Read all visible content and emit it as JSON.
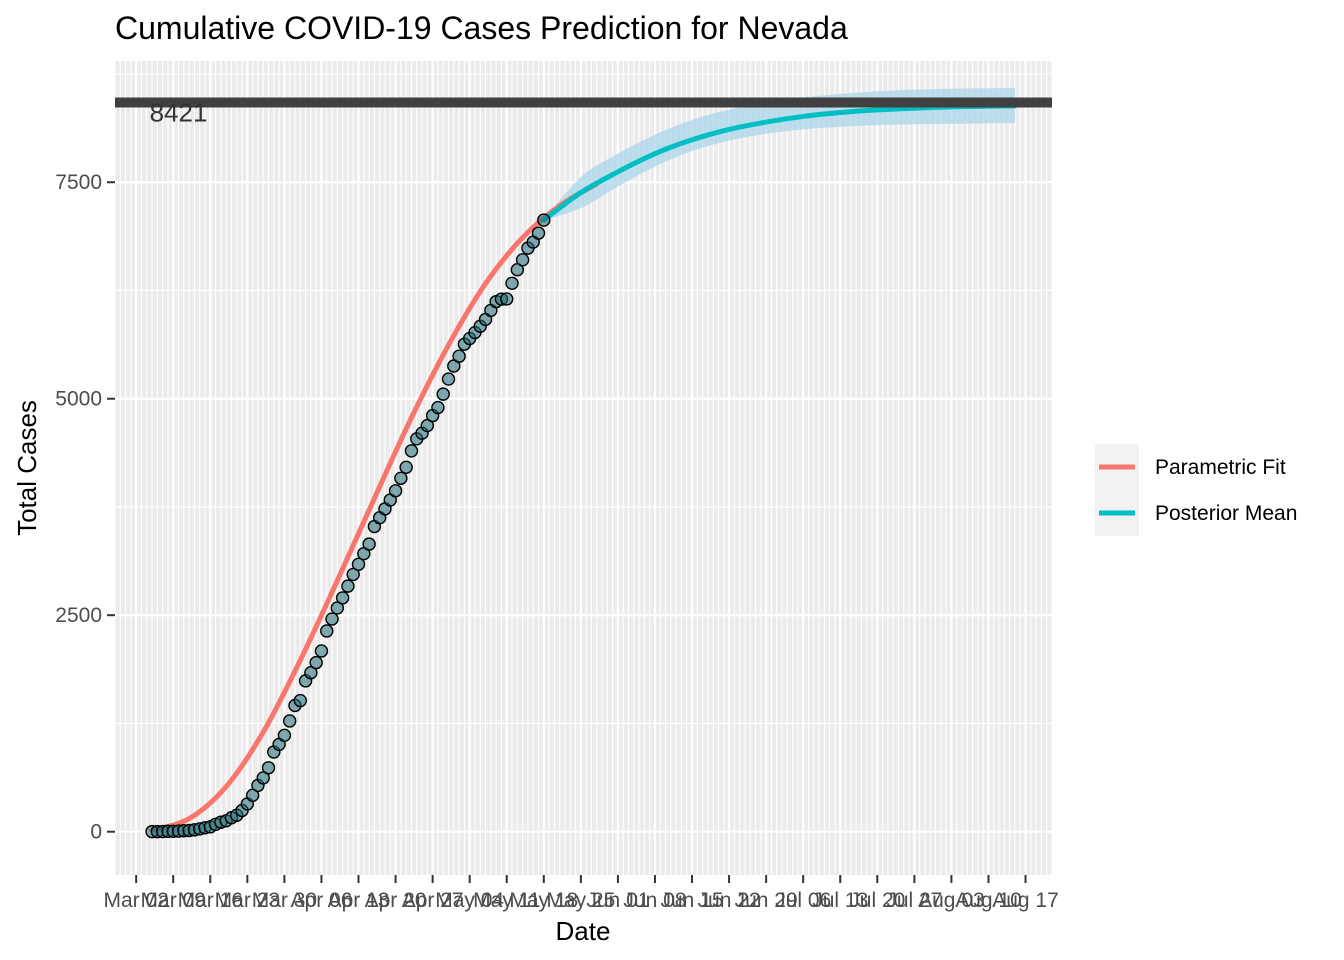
{
  "chart_data": {
    "type": "line",
    "title": "Cumulative COVID-19 Cases Prediction for Nevada",
    "xlabel": "Date",
    "ylabel": "Total Cases",
    "year": 2020,
    "xlim": [
      "2020-02-27",
      "2020-08-22"
    ],
    "ylim": [
      -500,
      8900
    ],
    "grid": true,
    "legend_position": "right",
    "y_ticks": [
      0,
      2500,
      5000,
      7500
    ],
    "y_tick_labels": [
      "0",
      "2500",
      "5000",
      "7500"
    ],
    "x_ticks": [
      "2020-03-02",
      "2020-03-09",
      "2020-03-16",
      "2020-03-23",
      "2020-03-30",
      "2020-04-06",
      "2020-04-13",
      "2020-04-20",
      "2020-04-27",
      "2020-05-04",
      "2020-05-11",
      "2020-05-18",
      "2020-05-25",
      "2020-06-01",
      "2020-06-08",
      "2020-06-15",
      "2020-06-22",
      "2020-06-29",
      "2020-07-06",
      "2020-07-13",
      "2020-07-20",
      "2020-07-27",
      "2020-08-03",
      "2020-08-10",
      "2020-08-17"
    ],
    "x_tick_labels": [
      "Mar 02",
      "Mar 09",
      "Mar 16",
      "Mar 23",
      "Mar 30",
      "Apr 06",
      "Apr 13",
      "Apr 20",
      "Apr 27",
      "May 04",
      "May 11",
      "May 18",
      "May 25",
      "Jun 01",
      "Jun 08",
      "Jun 15",
      "Jun 22",
      "Jun 29",
      "Jul 06",
      "Jul 13",
      "Jul 20",
      "Jul 27",
      "Aug 03",
      "Aug 10",
      "Aug 17"
    ],
    "hline": {
      "value": 8421,
      "label": "8421",
      "color": "#404040"
    },
    "colors": {
      "panel": "#ebebeb",
      "grid": "#ffffff",
      "parametric": "#f8766d",
      "posterior": "#00bfc4",
      "ribbon": "#a6d4ea",
      "points_fill": "#1f6b75",
      "points_stroke": "#000000"
    },
    "observed": {
      "start": "2020-03-05",
      "values": [
        1,
        1,
        2,
        4,
        5,
        7,
        11,
        14,
        21,
        32,
        45,
        56,
        85,
        109,
        126,
        161,
        190,
        245,
        321,
        420,
        535,
        621,
        738,
        920,
        1008,
        1113,
        1279,
        1458,
        1514,
        1742,
        1836,
        1953,
        2087,
        2318,
        2456,
        2584,
        2700,
        2836,
        2971,
        3088,
        3211,
        3321,
        3524,
        3626,
        3728,
        3830,
        3937,
        4081,
        4208,
        4398,
        4537,
        4602,
        4690,
        4805,
        4898,
        5053,
        5227,
        5378,
        5491,
        5630,
        5695,
        5764,
        5837,
        5916,
        6020,
        6121,
        6150,
        6152,
        6333,
        6490,
        6604,
        6739,
        6809,
        6912,
        7063
      ]
    },
    "series": [
      {
        "name": "Parametric Fit",
        "color": "#f8766d",
        "x": [
          "2020-03-05",
          "2020-03-12",
          "2020-03-19",
          "2020-03-26",
          "2020-04-02",
          "2020-04-09",
          "2020-04-16",
          "2020-04-23",
          "2020-04-30",
          "2020-05-07",
          "2020-05-14",
          "2020-05-21",
          "2020-05-28"
        ],
        "values": [
          20,
          150,
          520,
          1150,
          1980,
          2900,
          3850,
          4780,
          5620,
          6330,
          6860,
          7230,
          7480
        ]
      },
      {
        "name": "Posterior Mean",
        "color": "#00bfc4",
        "x": [
          "2020-05-18",
          "2020-05-25",
          "2020-06-01",
          "2020-06-08",
          "2020-06-15",
          "2020-06-22",
          "2020-06-29",
          "2020-07-06",
          "2020-07-13",
          "2020-07-20",
          "2020-07-27",
          "2020-08-03",
          "2020-08-10",
          "2020-08-15"
        ],
        "values": [
          7063,
          7380,
          7620,
          7830,
          7990,
          8110,
          8195,
          8260,
          8305,
          8335,
          8355,
          8370,
          8378,
          8382
        ],
        "lower": [
          7063,
          7200,
          7450,
          7680,
          7860,
          7980,
          8060,
          8110,
          8140,
          8160,
          8170,
          8175,
          8180,
          8182
        ],
        "upper": [
          7063,
          7560,
          7830,
          8050,
          8220,
          8340,
          8420,
          8480,
          8520,
          8550,
          8570,
          8580,
          8585,
          8588
        ]
      }
    ]
  }
}
